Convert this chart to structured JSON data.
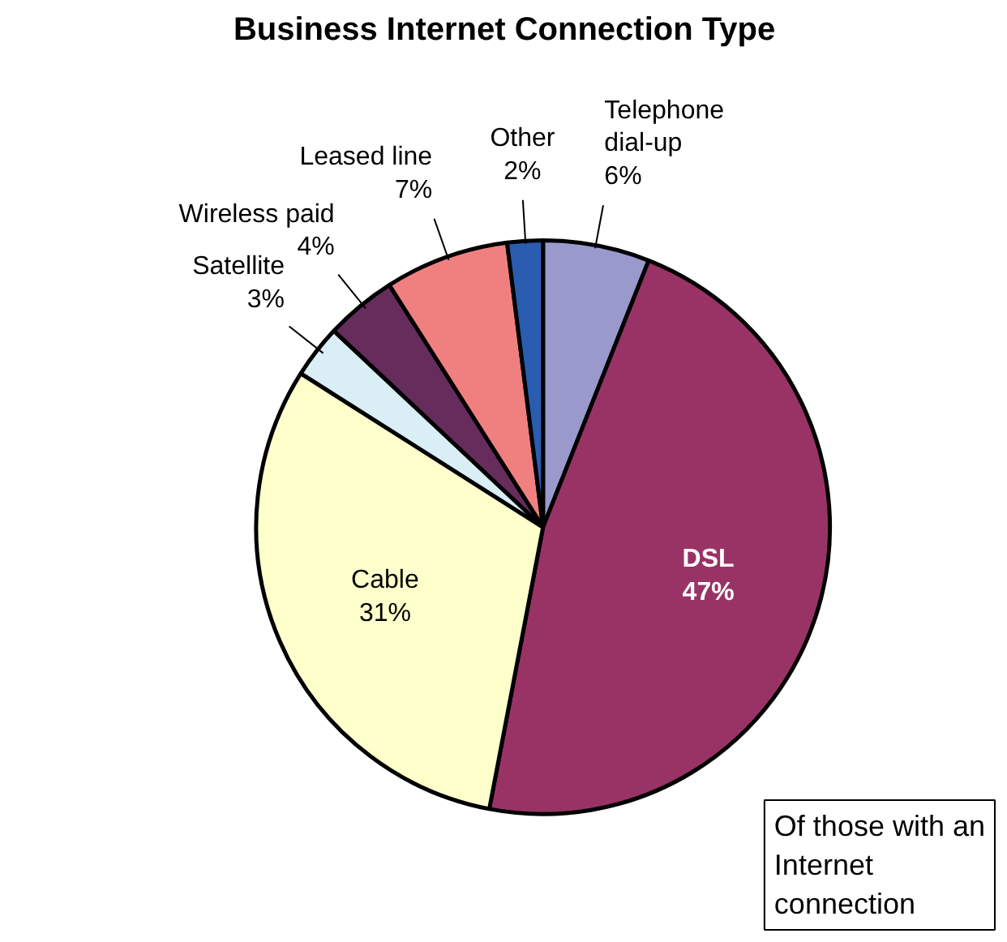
{
  "chart_data": {
    "type": "pie",
    "title": "Business Internet Connection Type",
    "categories": [
      "Telephone dial-up",
      "DSL",
      "Cable",
      "Satellite",
      "Wireless paid",
      "Leased line",
      "Other"
    ],
    "values": [
      6,
      47,
      31,
      3,
      4,
      7,
      2
    ],
    "colors": [
      "#9999cc",
      "#993366",
      "#ffffcc",
      "#d9eef5",
      "#662d5c",
      "#f08080",
      "#2a5db0"
    ],
    "value_labels": [
      "6%",
      "47%",
      "31%",
      "3%",
      "4%",
      "7%",
      "2%"
    ],
    "annotations": [
      "Of those with an Internet connection"
    ]
  }
}
